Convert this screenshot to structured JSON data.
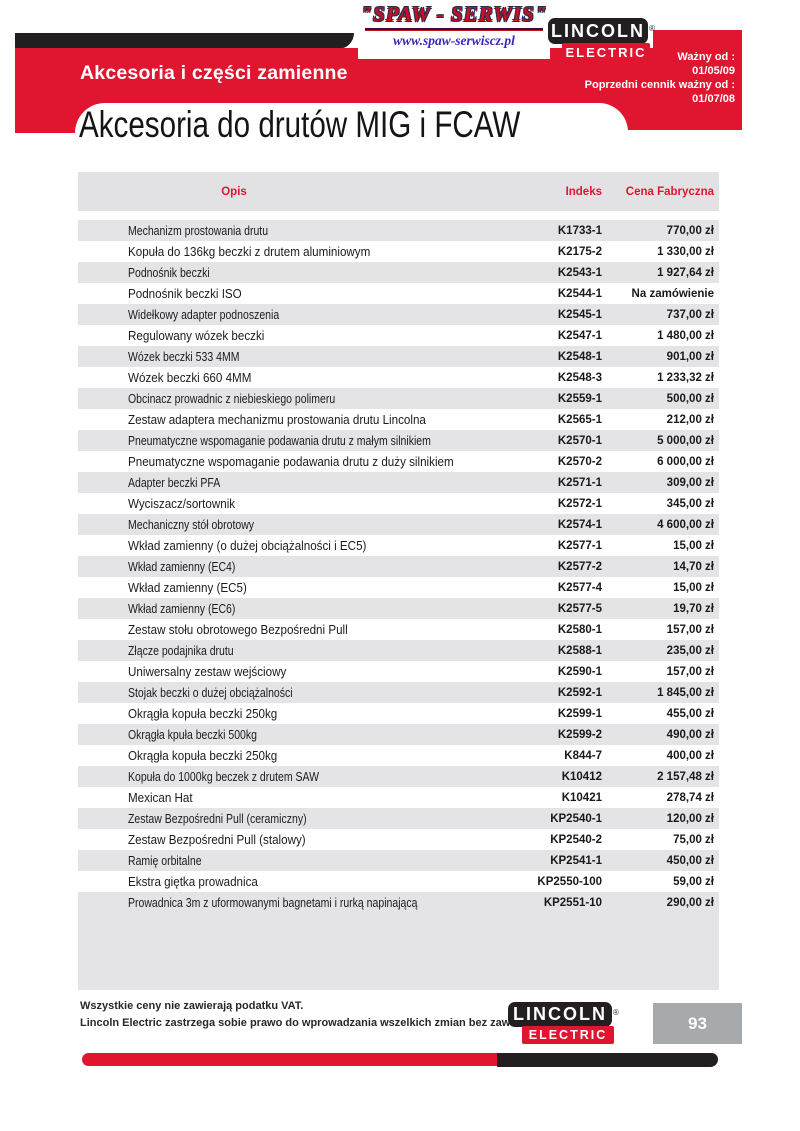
{
  "header": {
    "spaw_logo": {
      "title": "\"SPAW - SERWIS\"",
      "url": "www.spaw-serwiscz.pl"
    },
    "lincoln_logo": {
      "line1": "LINCOLN",
      "line2": "ELECTRIC",
      "reg": "®"
    },
    "banner_title": "Akcesoria i części zamienne",
    "validity": {
      "label1": "Ważny od :",
      "date1": "01/05/09",
      "label2": "Poprzedni cennik ważny od :",
      "date2": "01/07/08"
    },
    "page_title": "Akcesoria do drutów MIG i FCAW"
  },
  "table": {
    "columns": [
      "Opis",
      "Indeks",
      "Cena Fabryczna"
    ],
    "rows": [
      {
        "desc": "Mechanizm prostowania drutu",
        "index": "K1733-1",
        "price": "770,00 zł"
      },
      {
        "desc": "Kopuła do 136kg beczki z drutem aluminiowym",
        "index": "K2175-2",
        "price": "1 330,00 zł"
      },
      {
        "desc": "Podnośnik beczki",
        "index": "K2543-1",
        "price": "1 927,64 zł"
      },
      {
        "desc": "Podnośnik beczki ISO",
        "index": "K2544-1",
        "price": "Na zamówienie"
      },
      {
        "desc": "Widełkowy adapter podnoszenia",
        "index": "K2545-1",
        "price": "737,00 zł"
      },
      {
        "desc": "Regulowany wózek beczki",
        "index": "K2547-1",
        "price": "1 480,00 zł"
      },
      {
        "desc": "Wózek beczki 533 4MM",
        "index": "K2548-1",
        "price": "901,00 zł"
      },
      {
        "desc": "Wózek beczki 660 4MM",
        "index": "K2548-3",
        "price": "1 233,32 zł"
      },
      {
        "desc": "Obcinacz prowadnic z niebieskiego polimeru",
        "index": "K2559-1",
        "price": "500,00 zł"
      },
      {
        "desc": "Zestaw adaptera mechanizmu prostowania drutu Lincolna",
        "index": "K2565-1",
        "price": "212,00 zł"
      },
      {
        "desc": "Pneumatyczne wspomaganie podawania drutu z małym silnikiem",
        "index": "K2570-1",
        "price": "5 000,00 zł"
      },
      {
        "desc": "Pneumatyczne wspomaganie podawania drutu z duży silnikiem",
        "index": "K2570-2",
        "price": "6 000,00 zł"
      },
      {
        "desc": "Adapter beczki PFA",
        "index": "K2571-1",
        "price": "309,00 zł"
      },
      {
        "desc": "Wyciszacz/sortownik",
        "index": "K2572-1",
        "price": "345,00 zł"
      },
      {
        "desc": "Mechaniczny stół obrotowy",
        "index": "K2574-1",
        "price": "4 600,00 zł"
      },
      {
        "desc": "Wkład zamienny (o dużej obciążalności i EC5)",
        "index": "K2577-1",
        "price": "15,00 zł"
      },
      {
        "desc": "Wkład zamienny (EC4)",
        "index": "K2577-2",
        "price": "14,70 zł"
      },
      {
        "desc": "Wkład zamienny (EC5)",
        "index": "K2577-4",
        "price": "15,00 zł"
      },
      {
        "desc": "Wkład zamienny (EC6)",
        "index": "K2577-5",
        "price": "19,70 zł"
      },
      {
        "desc": "Zestaw stołu obrotowego Bezpośredni Pull",
        "index": "K2580-1",
        "price": "157,00 zł"
      },
      {
        "desc": "Złącze podajnika drutu",
        "index": "K2588-1",
        "price": "235,00 zł"
      },
      {
        "desc": "Uniwersalny zestaw wejściowy",
        "index": "K2590-1",
        "price": "157,00 zł"
      },
      {
        "desc": "Stojak beczki o dużej obciążalności",
        "index": "K2592-1",
        "price": "1 845,00 zł"
      },
      {
        "desc": "Okrągła kopuła beczki 250kg",
        "index": "K2599-1",
        "price": "455,00 zł"
      },
      {
        "desc": "Okrągła kpuła beczki 500kg",
        "index": "K2599-2",
        "price": "490,00 zł"
      },
      {
        "desc": "Okrągła kopuła beczki 250kg",
        "index": "K844-7",
        "price": "400,00 zł"
      },
      {
        "desc": "Kopuła do 1000kg beczek z drutem SAW",
        "index": "K10412",
        "price": "2 157,48 zł"
      },
      {
        "desc": "Mexican Hat",
        "index": "K10421",
        "price": "278,74 zł"
      },
      {
        "desc": "Zestaw Bezpośredni Pull (ceramiczny)",
        "index": "KP2540-1",
        "price": "120,00 zł"
      },
      {
        "desc": "Zestaw Bezpośredni Pull (stalowy)",
        "index": "KP2540-2",
        "price": "75,00 zł"
      },
      {
        "desc": "Ramię orbitalne",
        "index": "KP2541-1",
        "price": "450,00 zł"
      },
      {
        "desc": "Ekstra giętka prowadnica",
        "index": "KP2550-100",
        "price": "59,00 zł"
      },
      {
        "desc": "Prowadnica 3m z uformowanymi bagnetami i rurką napinającą",
        "index": "KP2551-10",
        "price": "290,00 zł"
      }
    ]
  },
  "footer": {
    "note1": "Wszystkie ceny nie zawierają podatku VAT.",
    "note2": "Lincoln Electric zastrzega sobie prawo do wprowadzania wszelkich zmian bez zawiadomienia.",
    "lincoln_logo": {
      "line1": "LINCOLN",
      "line2": "ELECTRIC",
      "reg": "®"
    },
    "page_number": "93"
  },
  "colors": {
    "accent_red": "#e01530",
    "bar_black": "#231f20",
    "row_gray": "#e4e4e6",
    "page_number_gray": "#a6aaad",
    "spaw_red": "#c41220",
    "spaw_blue": "#3629b8"
  }
}
